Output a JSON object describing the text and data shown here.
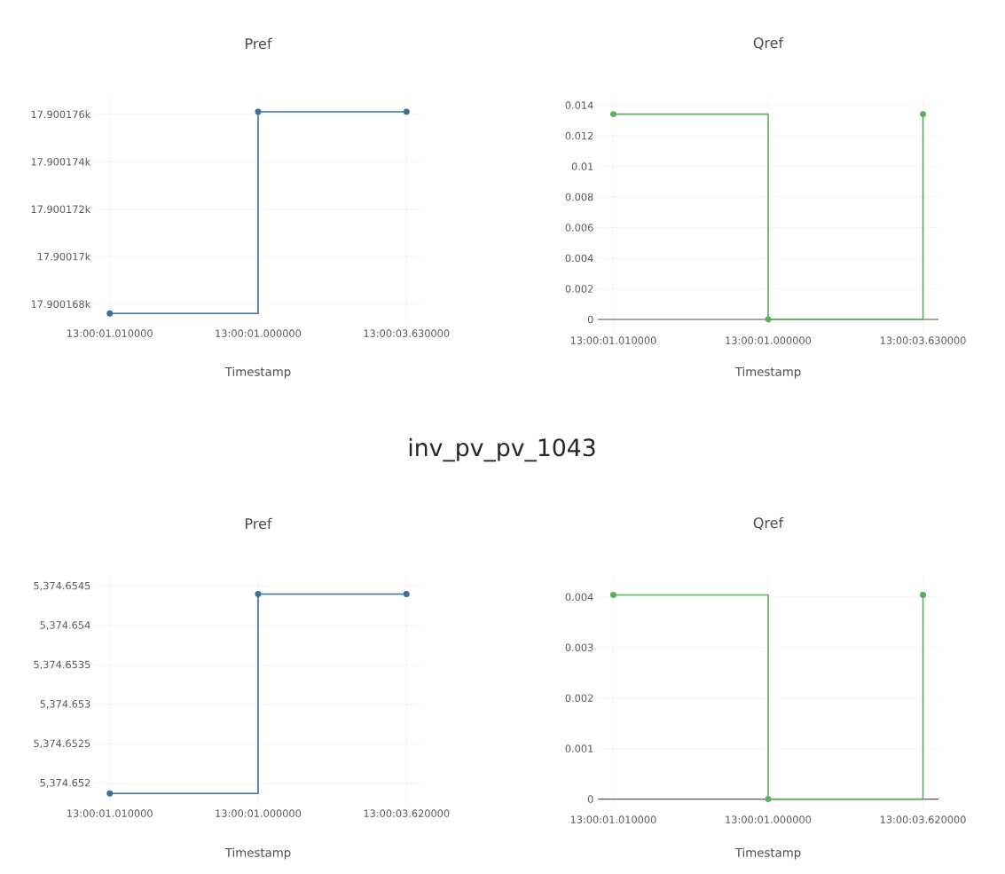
{
  "chart_data": [
    {
      "type": "step",
      "title": "Pref",
      "xlabel": "Timestamp",
      "categories": [
        "13:00:01.010000",
        "13:00:01.000000",
        "13:00:03.630000"
      ],
      "values": [
        17900.1676,
        17900.1761,
        17900.1761
      ],
      "color": "#3d6f9c",
      "ylim": [
        17900.1672,
        17900.1767
      ],
      "yticks": [
        {
          "value": 17900.168,
          "label": "17.900168k"
        },
        {
          "value": 17900.17,
          "label": "17.90017k"
        },
        {
          "value": 17900.172,
          "label": "17.900172k"
        },
        {
          "value": 17900.174,
          "label": "17.900174k"
        },
        {
          "value": 17900.176,
          "label": "17.900176k"
        }
      ],
      "grid": true,
      "marker": "circle"
    },
    {
      "type": "step",
      "title": "Qref",
      "xlabel": "Timestamp",
      "categories": [
        "13:00:01.010000",
        "13:00:01.000000",
        "13:00:03.630000"
      ],
      "values": [
        0.01342,
        0,
        0.01342
      ],
      "color": "#5cae5c",
      "ylim": [
        -0.0007,
        0.0145
      ],
      "yticks": [
        0,
        0.002,
        0.004,
        0.006,
        0.008,
        0.01,
        0.012,
        0.014
      ],
      "grid": true,
      "marker": "circle"
    },
    {
      "type": "step",
      "title": "Pref",
      "xlabel": "Timestamp",
      "annotations": [
        "inv_pv_pv_1043"
      ],
      "categories": [
        "13:00:01.010000",
        "13:00:01.000000",
        "13:00:03.620000"
      ],
      "values": [
        5374.65187,
        5374.6544,
        5374.6544
      ],
      "color": "#3d6f9c",
      "ylim": [
        5374.65175,
        5374.65462
      ],
      "yticks": [
        {
          "value": 5374.652,
          "label": "5,374.652"
        },
        {
          "value": 5374.6525,
          "label": "5,374.6525"
        },
        {
          "value": 5374.653,
          "label": "5,374.653"
        },
        {
          "value": 5374.6535,
          "label": "5,374.6535"
        },
        {
          "value": 5374.654,
          "label": "5,374.654"
        },
        {
          "value": 5374.6545,
          "label": "5,374.6545"
        }
      ],
      "grid": true,
      "marker": "circle"
    },
    {
      "type": "step",
      "title": "Qref",
      "xlabel": "Timestamp",
      "categories": [
        "13:00:01.010000",
        "13:00:01.000000",
        "13:00:03.620000"
      ],
      "values": [
        0.00404,
        0,
        0.00404
      ],
      "color": "#5cae5c",
      "ylim": [
        -0.0002,
        0.0044
      ],
      "yticks": [
        0,
        0.001,
        0.002,
        0.003,
        0.004
      ],
      "grid": true,
      "marker": "circle"
    }
  ]
}
